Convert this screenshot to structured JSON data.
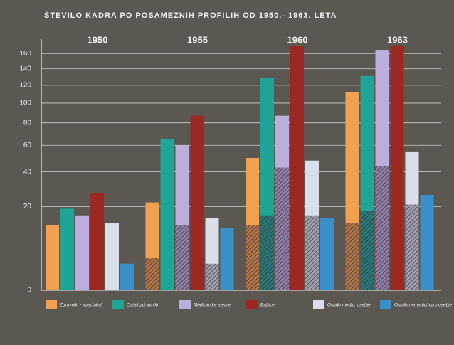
{
  "chart_data": {
    "type": "bar",
    "title": "ŠTEVILO KADRA PO POSAMEZNIH PROFILIH OD 1950.- 1963. LETA",
    "categories": [
      "1950",
      "1955",
      "1960",
      "1963"
    ],
    "scale": "sqrt",
    "ylim": [
      0,
      175
    ],
    "yticks": [
      0,
      20,
      40,
      60,
      80,
      100,
      120,
      140,
      160
    ],
    "grid": true,
    "series": [
      {
        "name": "Zdravniki - specialisti",
        "color": "#f0a04e",
        "values": [
          12,
          22,
          50,
          112
        ],
        "hatched": [
          null,
          3,
          12,
          13
        ]
      },
      {
        "name": "Ostali zdravniki",
        "color": "#1fa597",
        "values": [
          19,
          65,
          129,
          131
        ],
        "hatched": [
          null,
          null,
          16,
          18
        ]
      },
      {
        "name": "Medicinske sestre",
        "color": "#bcaedc",
        "values": [
          16,
          60,
          87,
          165
        ],
        "hatched": [
          null,
          12,
          43,
          44
        ]
      },
      {
        "name": "Babice",
        "color": "#9c2824",
        "values": [
          27,
          87,
          170,
          170
        ],
        "hatched": [
          null,
          null,
          null,
          null
        ]
      },
      {
        "name": "Ostalo medic. osebje",
        "color": "#d9dee8",
        "values": [
          13,
          15,
          48,
          55
        ],
        "hatched": [
          null,
          2,
          16,
          21
        ]
      },
      {
        "name": "Ostalo nemedicinsko osebje",
        "color": "#3a90c9",
        "values": [
          2,
          11,
          15,
          26
        ],
        "hatched": [
          null,
          null,
          null,
          null
        ]
      }
    ]
  }
}
